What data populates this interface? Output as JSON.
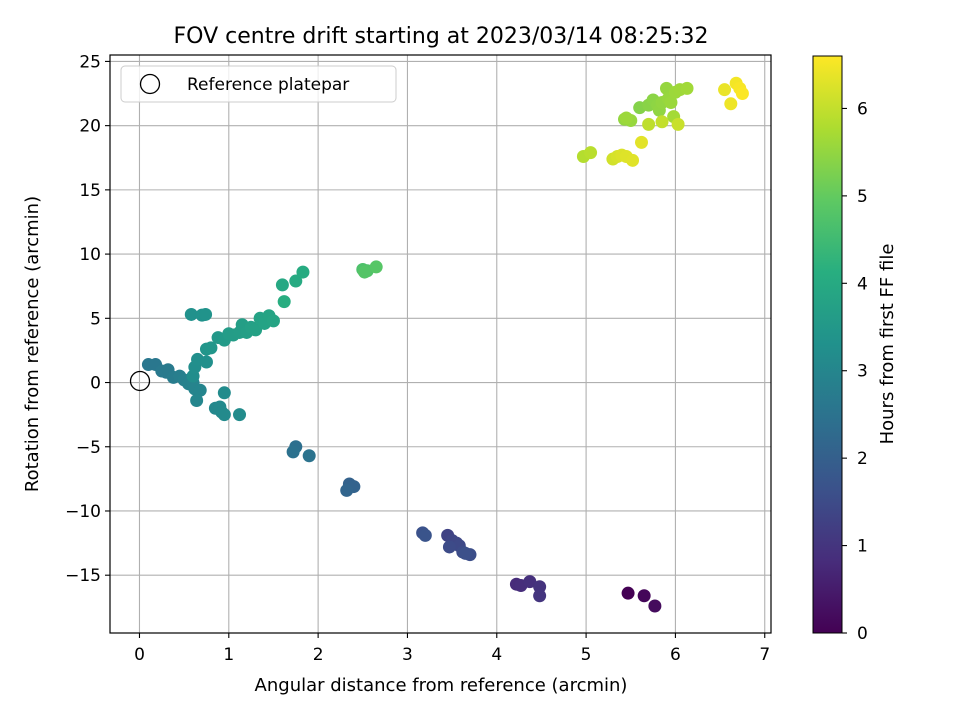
{
  "chart_data": {
    "type": "scatter",
    "title": "FOV centre drift starting at 2023/03/14 08:25:32",
    "xlabel": "Angular distance from reference (arcmin)",
    "ylabel": "Rotation from reference (arcmin)",
    "xlim": [
      -0.33,
      7.07
    ],
    "ylim": [
      -19.5,
      25.5
    ],
    "xticks": [
      0,
      1,
      2,
      3,
      4,
      5,
      6,
      7
    ],
    "yticks": [
      -15,
      -10,
      -5,
      0,
      5,
      10,
      15,
      20,
      25
    ],
    "xtick_labels": [
      "0",
      "1",
      "2",
      "3",
      "4",
      "5",
      "6",
      "7"
    ],
    "ytick_labels": [
      "−15",
      "−10",
      "−5",
      "0",
      "5",
      "10",
      "15",
      "20",
      "25"
    ],
    "grid": true,
    "legend": {
      "placement": "top-left",
      "entries": [
        "Reference platepar"
      ]
    },
    "reference_point": {
      "x": 0,
      "y": 0,
      "label": "Reference platepar"
    },
    "colorbar": {
      "label": "Hours from first FF file",
      "colormap": "viridis",
      "range": [
        0,
        6.6
      ],
      "ticks": [
        0,
        1,
        2,
        3,
        4,
        5,
        6
      ],
      "tick_labels": [
        "0",
        "1",
        "2",
        "3",
        "4",
        "5",
        "6"
      ]
    },
    "points": [
      [
        5.47,
        -16.4,
        0.0
      ],
      [
        5.65,
        -16.6,
        0.1
      ],
      [
        5.77,
        -17.4,
        0.2
      ],
      [
        4.22,
        -15.7,
        0.8
      ],
      [
        4.27,
        -15.8,
        0.85
      ],
      [
        4.37,
        -15.5,
        0.9
      ],
      [
        4.48,
        -15.9,
        0.95
      ],
      [
        4.48,
        -16.6,
        1.0
      ],
      [
        3.45,
        -11.9,
        1.3
      ],
      [
        3.5,
        -12.3,
        1.35
      ],
      [
        3.55,
        -12.5,
        1.4
      ],
      [
        3.58,
        -12.7,
        1.45
      ],
      [
        3.47,
        -12.8,
        1.5
      ],
      [
        3.62,
        -13.2,
        1.52
      ],
      [
        3.7,
        -13.4,
        1.55
      ],
      [
        3.65,
        -13.3,
        1.6
      ],
      [
        3.17,
        -11.7,
        1.65
      ],
      [
        3.2,
        -11.9,
        1.7
      ],
      [
        2.35,
        -7.9,
        2.05
      ],
      [
        2.4,
        -8.1,
        2.1
      ],
      [
        2.32,
        -8.4,
        2.15
      ],
      [
        1.75,
        -5.0,
        2.4
      ],
      [
        1.72,
        -5.4,
        2.45
      ],
      [
        1.9,
        -5.7,
        2.5
      ],
      [
        0.1,
        1.4,
        2.6
      ],
      [
        0.18,
        1.4,
        2.62
      ],
      [
        0.25,
        0.9,
        2.65
      ],
      [
        0.3,
        0.8,
        2.68
      ],
      [
        0.32,
        1.0,
        2.7
      ],
      [
        0.38,
        0.4,
        2.75
      ],
      [
        0.45,
        0.5,
        2.8
      ],
      [
        0.5,
        0.2,
        2.85
      ],
      [
        0.55,
        -0.1,
        2.9
      ],
      [
        0.6,
        0.0,
        2.92
      ],
      [
        0.62,
        -0.5,
        2.95
      ],
      [
        0.68,
        -0.6,
        2.98
      ],
      [
        0.64,
        -1.4,
        3.0
      ],
      [
        0.85,
        -2.0,
        3.05
      ],
      [
        0.9,
        -1.9,
        3.08
      ],
      [
        0.92,
        -2.3,
        3.1
      ],
      [
        0.95,
        -2.5,
        3.12
      ],
      [
        0.95,
        -0.8,
        3.15
      ],
      [
        1.12,
        -2.5,
        3.18
      ],
      [
        0.6,
        0.5,
        3.2
      ],
      [
        0.62,
        1.2,
        3.22
      ],
      [
        0.65,
        1.8,
        3.25
      ],
      [
        0.75,
        1.6,
        3.28
      ],
      [
        0.58,
        5.3,
        3.3
      ],
      [
        0.7,
        5.25,
        3.32
      ],
      [
        0.74,
        5.3,
        3.35
      ],
      [
        0.75,
        2.6,
        3.4
      ],
      [
        0.8,
        2.7,
        3.45
      ],
      [
        0.88,
        3.5,
        3.5
      ],
      [
        0.95,
        3.3,
        3.55
      ],
      [
        1.0,
        3.8,
        3.6
      ],
      [
        1.05,
        3.7,
        3.62
      ],
      [
        1.12,
        3.9,
        3.65
      ],
      [
        1.15,
        4.5,
        3.68
      ],
      [
        1.2,
        3.9,
        3.7
      ],
      [
        1.25,
        4.3,
        3.72
      ],
      [
        1.3,
        4.1,
        3.75
      ],
      [
        1.35,
        5.0,
        3.78
      ],
      [
        1.4,
        4.6,
        3.8
      ],
      [
        1.45,
        5.2,
        3.82
      ],
      [
        1.5,
        4.8,
        3.85
      ],
      [
        1.6,
        7.6,
        3.95
      ],
      [
        1.75,
        7.9,
        4.0
      ],
      [
        1.83,
        8.6,
        4.05
      ],
      [
        1.62,
        6.3,
        4.1
      ],
      [
        2.5,
        8.8,
        4.7
      ],
      [
        2.55,
        8.7,
        4.75
      ],
      [
        2.52,
        8.6,
        4.8
      ],
      [
        2.65,
        9.0,
        4.85
      ],
      [
        5.6,
        21.4,
        5.35
      ],
      [
        5.7,
        21.6,
        5.4
      ],
      [
        5.75,
        22.0,
        5.42
      ],
      [
        5.8,
        21.6,
        5.45
      ],
      [
        5.82,
        21.2,
        5.48
      ],
      [
        5.85,
        21.8,
        5.5
      ],
      [
        5.9,
        22.9,
        5.52
      ],
      [
        5.92,
        22.1,
        5.55
      ],
      [
        5.95,
        21.8,
        5.58
      ],
      [
        6.0,
        22.6,
        5.6
      ],
      [
        6.05,
        22.8,
        5.62
      ],
      [
        6.13,
        22.9,
        5.65
      ],
      [
        5.98,
        20.7,
        5.68
      ],
      [
        5.43,
        20.5,
        5.5
      ],
      [
        5.5,
        20.4,
        5.55
      ],
      [
        5.45,
        20.6,
        5.6
      ],
      [
        4.97,
        17.6,
        5.85
      ],
      [
        5.05,
        17.9,
        5.9
      ],
      [
        5.7,
        20.1,
        5.95
      ],
      [
        5.85,
        20.3,
        6.0
      ],
      [
        6.03,
        20.1,
        6.05
      ],
      [
        5.3,
        17.4,
        6.15
      ],
      [
        5.35,
        17.6,
        6.2
      ],
      [
        5.4,
        17.7,
        6.25
      ],
      [
        5.45,
        17.6,
        6.28
      ],
      [
        5.52,
        17.3,
        6.3
      ],
      [
        5.62,
        18.7,
        6.32
      ],
      [
        6.55,
        22.8,
        6.4
      ],
      [
        6.62,
        21.7,
        6.45
      ],
      [
        6.68,
        23.3,
        6.5
      ],
      [
        6.72,
        22.9,
        6.55
      ],
      [
        6.75,
        22.5,
        6.58
      ]
    ]
  }
}
